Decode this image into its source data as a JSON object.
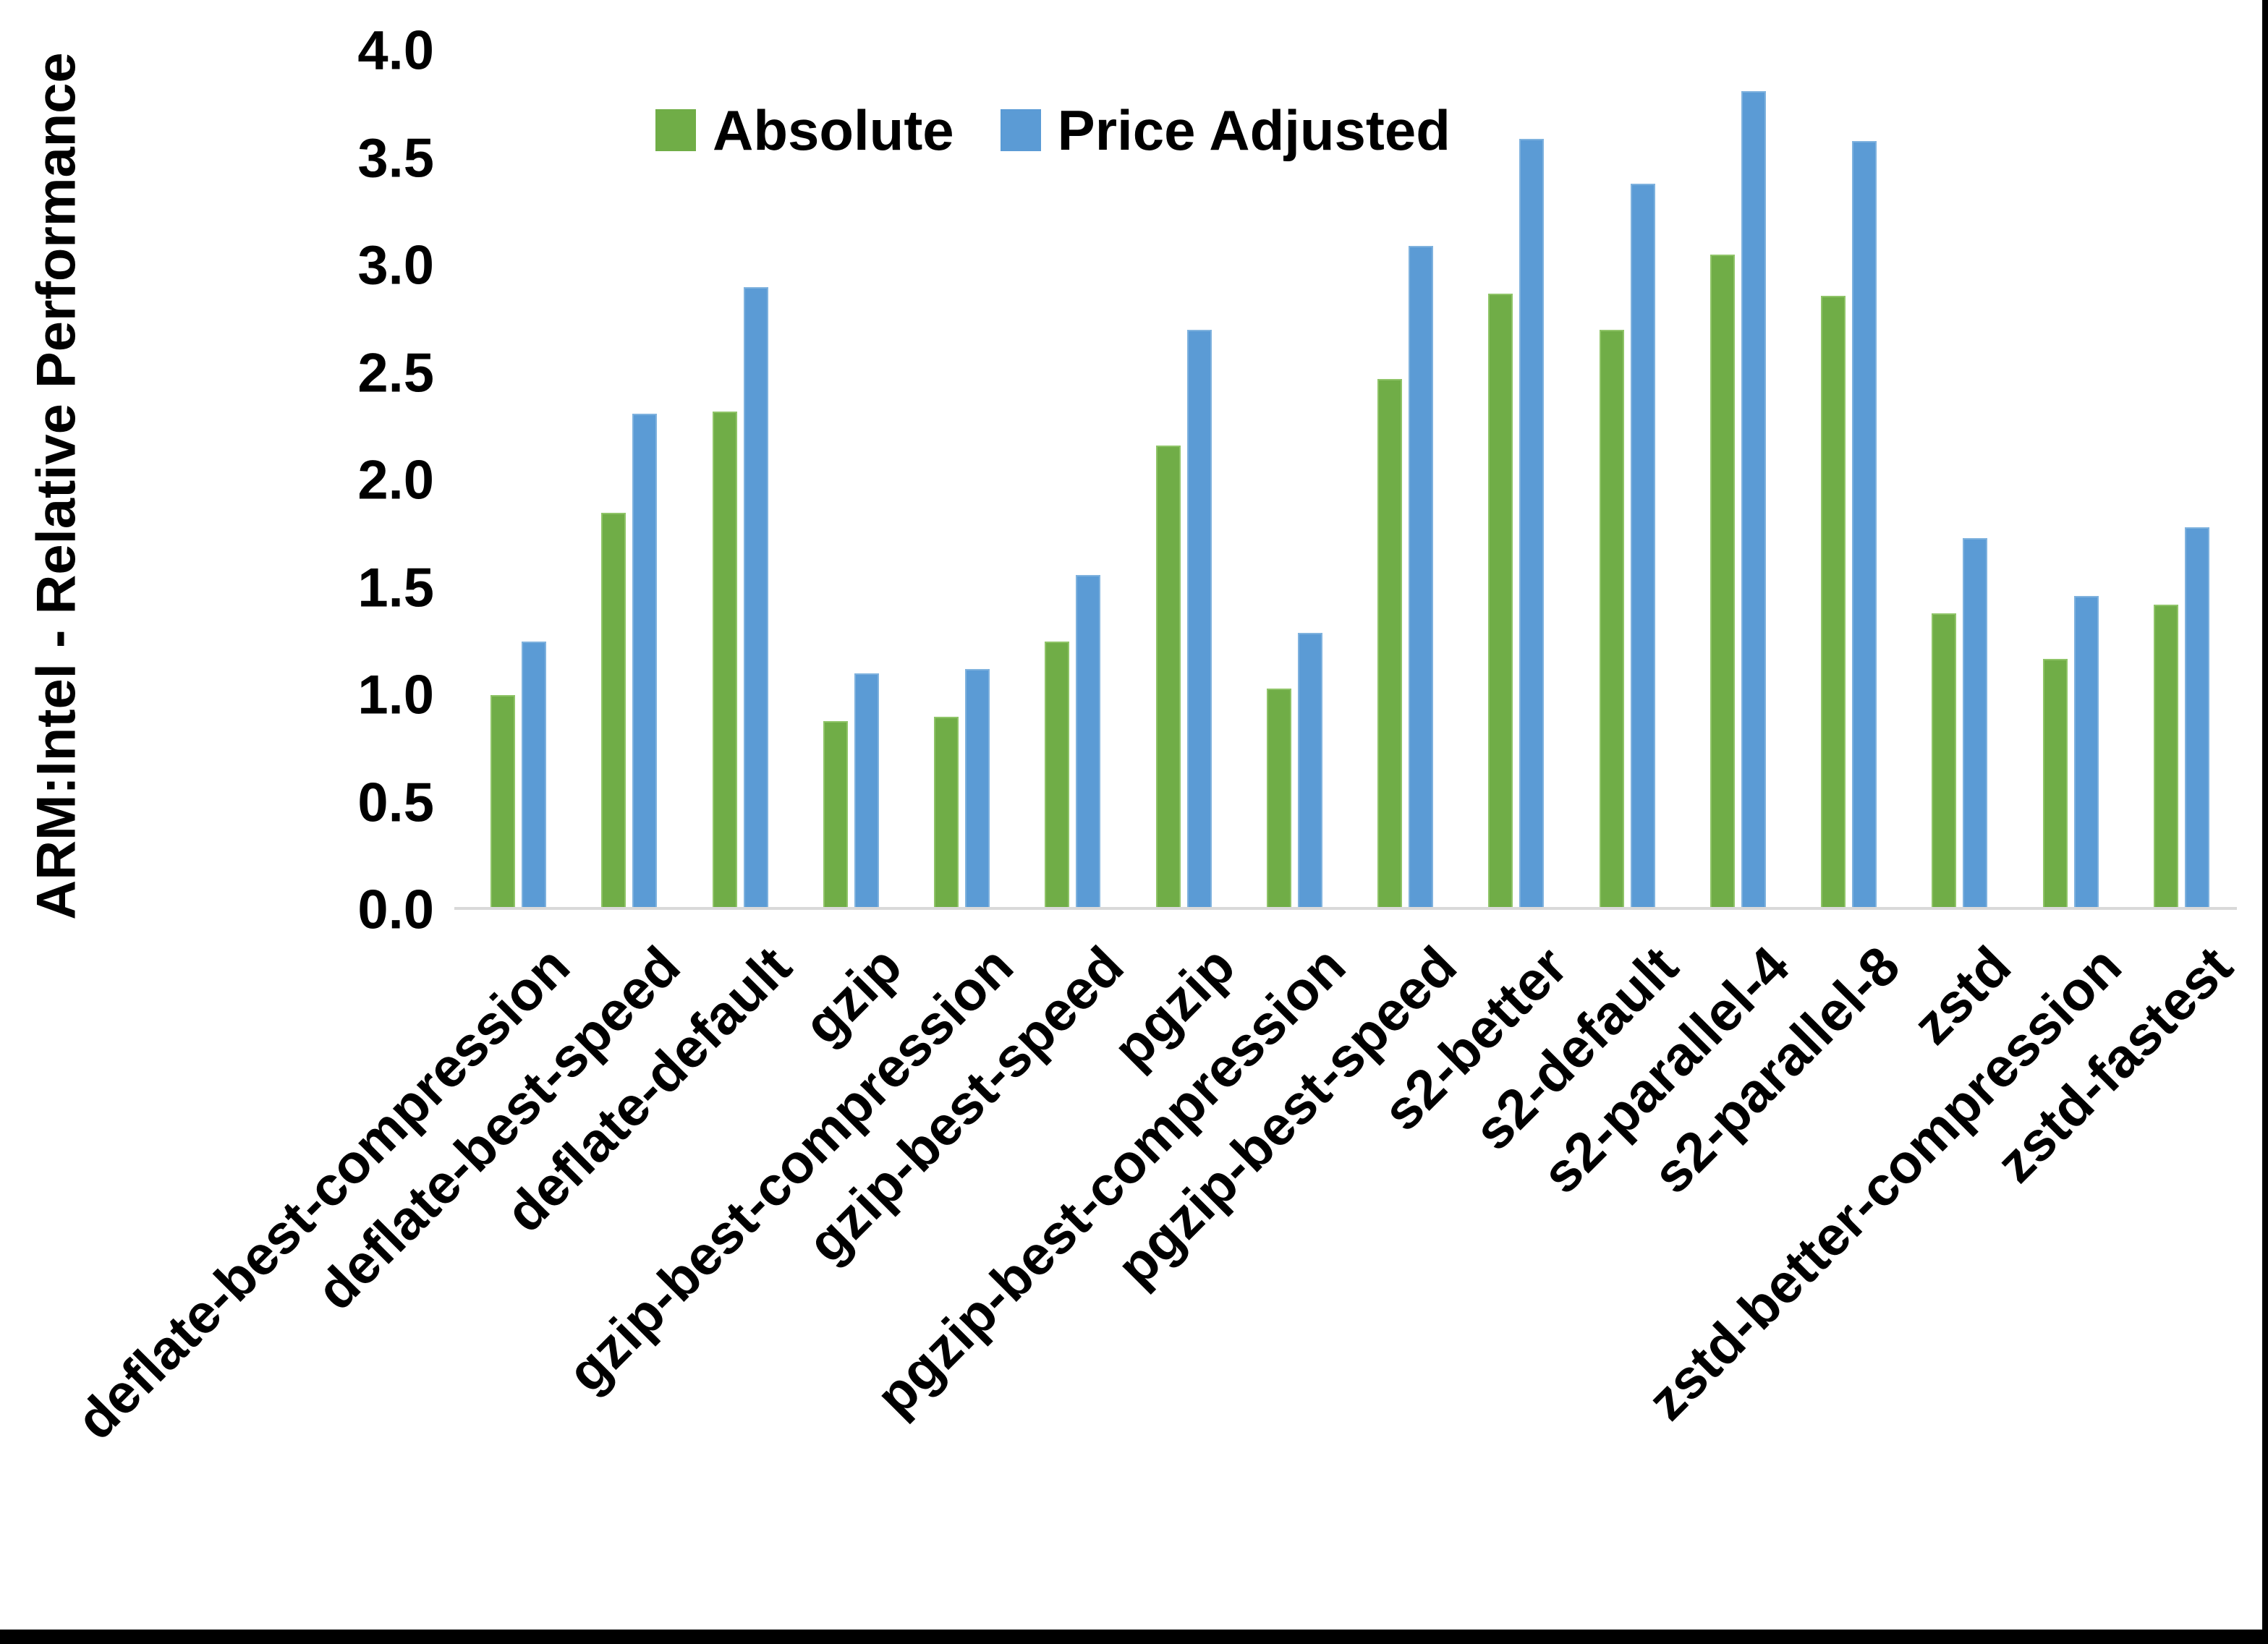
{
  "figure": {
    "y_axis_title": "ARM:Intel - Relative Performance",
    "background_color": "#ffffff",
    "axis_line_color": "#d9d9d9",
    "border_color": "#000000",
    "legend": {
      "position": "top-center",
      "items": [
        {
          "label": "Absolute",
          "color": "#70AD47"
        },
        {
          "label": "Price Adjusted",
          "color": "#5B9BD5"
        }
      ]
    }
  },
  "chart_data": {
    "type": "bar",
    "title": "",
    "xlabel": "",
    "ylabel": "ARM:Intel - Relative Performance",
    "ylim": [
      0,
      4
    ],
    "ytick_step": 0.5,
    "ytick_labels": [
      "0.0",
      "0.5",
      "1.0",
      "1.5",
      "2.0",
      "2.5",
      "3.0",
      "3.5",
      "4.0"
    ],
    "grid": false,
    "legend_position": "top-center",
    "categories": [
      "deflate-best-compression",
      "deflate-best-speed",
      "deflate-default",
      "gzip",
      "gzip-best-compression",
      "gzip-best-speed",
      "pgzip",
      "pgzip-best-compression",
      "pgzip-best-speed",
      "s2-better",
      "s2-default",
      "s2-parallel-4",
      "s2-parallel-8",
      "zstd",
      "zstd-better-compression",
      "zstd-fastest"
    ],
    "series": [
      {
        "name": "Absolute",
        "color": "#70AD47",
        "edge_color": "#8FC468",
        "values": [
          1.0,
          1.85,
          2.32,
          0.88,
          0.9,
          1.25,
          2.16,
          1.03,
          2.47,
          2.87,
          2.7,
          3.05,
          2.86,
          1.38,
          1.17,
          1.42
        ]
      },
      {
        "name": "Price Adjusted",
        "color": "#5B9BD5",
        "edge_color": "#7FB2DE",
        "values": [
          1.25,
          2.31,
          2.9,
          1.1,
          1.12,
          1.56,
          2.7,
          1.29,
          3.09,
          3.59,
          3.38,
          3.81,
          3.58,
          1.73,
          1.46,
          1.78
        ]
      }
    ]
  }
}
